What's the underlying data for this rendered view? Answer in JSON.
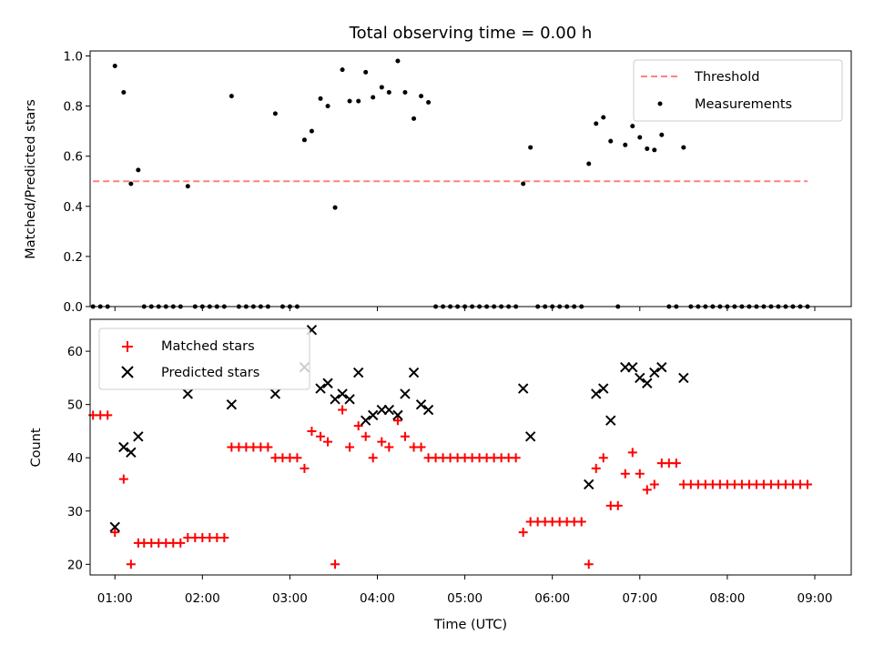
{
  "figure": {
    "title": "Total observing time = 0.00 h",
    "xlabel": "Time (UTC)"
  },
  "chart_data": [
    {
      "type": "scatter",
      "panel": "top",
      "title": "Total observing time = 0.00 h",
      "xlabel": "",
      "ylabel": "Matched/Predicted stars",
      "x_axis": "time of day (UTC, HH:MM)",
      "xlim": [
        "00:43",
        "09:25"
      ],
      "ylim": [
        0,
        1.02
      ],
      "y_ticks": [
        0.0,
        0.2,
        0.4,
        0.6,
        0.8,
        1.0
      ],
      "y_tick_labels": [
        "0.0",
        "0.2",
        "0.4",
        "0.6",
        "0.8",
        "1.0"
      ],
      "grid": false,
      "legend": {
        "placement": "top-right",
        "entries": [
          "Threshold",
          "Measurements"
        ]
      },
      "threshold": {
        "name": "Threshold",
        "value": 0.5,
        "x_start": "00:45",
        "x_end": "08:55",
        "color": "#ff8080",
        "style": "dashed"
      },
      "series": [
        {
          "name": "Measurements",
          "color": "#000000",
          "points": [
            [
              "00:45",
              0.0
            ],
            [
              "00:50",
              0.0
            ],
            [
              "00:55",
              0.0
            ],
            [
              "01:00",
              0.96
            ],
            [
              "01:06",
              0.855
            ],
            [
              "01:11",
              0.49
            ],
            [
              "01:16",
              0.545
            ],
            [
              "01:20",
              0.0
            ],
            [
              "01:25",
              0.0
            ],
            [
              "01:30",
              0.0
            ],
            [
              "01:35",
              0.0
            ],
            [
              "01:40",
              0.0
            ],
            [
              "01:45",
              0.0
            ],
            [
              "01:50",
              0.48
            ],
            [
              "01:55",
              0.0
            ],
            [
              "02:00",
              0.0
            ],
            [
              "02:05",
              0.0
            ],
            [
              "02:10",
              0.0
            ],
            [
              "02:15",
              0.0
            ],
            [
              "02:20",
              0.84
            ],
            [
              "02:25",
              0.0
            ],
            [
              "02:30",
              0.0
            ],
            [
              "02:35",
              0.0
            ],
            [
              "02:40",
              0.0
            ],
            [
              "02:45",
              0.0
            ],
            [
              "02:50",
              0.77
            ],
            [
              "02:55",
              0.0
            ],
            [
              "03:00",
              0.0
            ],
            [
              "03:05",
              0.0
            ],
            [
              "03:10",
              0.665
            ],
            [
              "03:15",
              0.7
            ],
            [
              "03:21",
              0.83
            ],
            [
              "03:26",
              0.8
            ],
            [
              "03:31",
              0.395
            ],
            [
              "03:36",
              0.945
            ],
            [
              "03:41",
              0.82
            ],
            [
              "03:47",
              0.82
            ],
            [
              "03:52",
              0.935
            ],
            [
              "03:57",
              0.835
            ],
            [
              "04:03",
              0.875
            ],
            [
              "04:08",
              0.855
            ],
            [
              "04:14",
              0.98
            ],
            [
              "04:19",
              0.855
            ],
            [
              "04:25",
              0.75
            ],
            [
              "04:30",
              0.84
            ],
            [
              "04:35",
              0.815
            ],
            [
              "04:40",
              0.0
            ],
            [
              "04:45",
              0.0
            ],
            [
              "04:50",
              0.0
            ],
            [
              "04:55",
              0.0
            ],
            [
              "05:00",
              0.0
            ],
            [
              "05:05",
              0.0
            ],
            [
              "05:10",
              0.0
            ],
            [
              "05:15",
              0.0
            ],
            [
              "05:20",
              0.0
            ],
            [
              "05:25",
              0.0
            ],
            [
              "05:30",
              0.0
            ],
            [
              "05:35",
              0.0
            ],
            [
              "05:40",
              0.49
            ],
            [
              "05:45",
              0.635
            ],
            [
              "05:50",
              0.0
            ],
            [
              "05:55",
              0.0
            ],
            [
              "06:00",
              0.0
            ],
            [
              "06:05",
              0.0
            ],
            [
              "06:10",
              0.0
            ],
            [
              "06:15",
              0.0
            ],
            [
              "06:20",
              0.0
            ],
            [
              "06:25",
              0.57
            ],
            [
              "06:30",
              0.73
            ],
            [
              "06:35",
              0.755
            ],
            [
              "06:40",
              0.66
            ],
            [
              "06:45",
              0.0
            ],
            [
              "06:50",
              0.645
            ],
            [
              "06:55",
              0.72
            ],
            [
              "07:00",
              0.675
            ],
            [
              "07:05",
              0.63
            ],
            [
              "07:10",
              0.625
            ],
            [
              "07:15",
              0.685
            ],
            [
              "07:20",
              0.0
            ],
            [
              "07:25",
              0.0
            ],
            [
              "07:30",
              0.635
            ],
            [
              "07:35",
              0.0
            ],
            [
              "07:40",
              0.0
            ],
            [
              "07:45",
              0.0
            ],
            [
              "07:50",
              0.0
            ],
            [
              "07:55",
              0.0
            ],
            [
              "08:00",
              0.0
            ],
            [
              "08:05",
              0.0
            ],
            [
              "08:10",
              0.0
            ],
            [
              "08:15",
              0.0
            ],
            [
              "08:20",
              0.0
            ],
            [
              "08:25",
              0.0
            ],
            [
              "08:30",
              0.0
            ],
            [
              "08:35",
              0.0
            ],
            [
              "08:40",
              0.0
            ],
            [
              "08:45",
              0.0
            ],
            [
              "08:50",
              0.0
            ],
            [
              "08:55",
              0.0
            ]
          ]
        }
      ]
    },
    {
      "type": "scatter",
      "panel": "bottom",
      "xlabel": "Time (UTC)",
      "ylabel": "Count",
      "x_axis": "time of day (UTC, HH:MM)",
      "xlim": [
        "00:43",
        "09:25"
      ],
      "x_ticks": [
        "01:00",
        "02:00",
        "03:00",
        "04:00",
        "05:00",
        "06:00",
        "07:00",
        "08:00",
        "09:00"
      ],
      "ylim": [
        18,
        66
      ],
      "y_ticks": [
        20,
        30,
        40,
        50,
        60
      ],
      "y_tick_labels": [
        "20",
        "30",
        "40",
        "50",
        "60"
      ],
      "grid": false,
      "legend": {
        "placement": "top-left",
        "entries": [
          "Matched stars",
          "Predicted stars"
        ]
      },
      "series": [
        {
          "name": "Matched stars",
          "marker": "plus",
          "color": "#ff0000",
          "points": [
            [
              "00:45",
              48
            ],
            [
              "00:50",
              48
            ],
            [
              "00:55",
              48
            ],
            [
              "01:00",
              26
            ],
            [
              "01:06",
              36
            ],
            [
              "01:11",
              20
            ],
            [
              "01:16",
              24
            ],
            [
              "01:20",
              24
            ],
            [
              "01:25",
              24
            ],
            [
              "01:30",
              24
            ],
            [
              "01:35",
              24
            ],
            [
              "01:40",
              24
            ],
            [
              "01:45",
              24
            ],
            [
              "01:50",
              25
            ],
            [
              "01:55",
              25
            ],
            [
              "02:00",
              25
            ],
            [
              "02:05",
              25
            ],
            [
              "02:10",
              25
            ],
            [
              "02:15",
              25
            ],
            [
              "02:20",
              42
            ],
            [
              "02:25",
              42
            ],
            [
              "02:30",
              42
            ],
            [
              "02:35",
              42
            ],
            [
              "02:40",
              42
            ],
            [
              "02:45",
              42
            ],
            [
              "02:50",
              40
            ],
            [
              "02:55",
              40
            ],
            [
              "03:00",
              40
            ],
            [
              "03:05",
              40
            ],
            [
              "03:10",
              38
            ],
            [
              "03:15",
              45
            ],
            [
              "03:21",
              44
            ],
            [
              "03:26",
              43
            ],
            [
              "03:31",
              20
            ],
            [
              "03:36",
              49
            ],
            [
              "03:41",
              42
            ],
            [
              "03:47",
              46
            ],
            [
              "03:52",
              44
            ],
            [
              "03:57",
              40
            ],
            [
              "04:03",
              43
            ],
            [
              "04:08",
              42
            ],
            [
              "04:14",
              47
            ],
            [
              "04:19",
              44
            ],
            [
              "04:25",
              42
            ],
            [
              "04:30",
              42
            ],
            [
              "04:35",
              40
            ],
            [
              "04:40",
              40
            ],
            [
              "04:45",
              40
            ],
            [
              "04:50",
              40
            ],
            [
              "04:55",
              40
            ],
            [
              "05:00",
              40
            ],
            [
              "05:05",
              40
            ],
            [
              "05:10",
              40
            ],
            [
              "05:15",
              40
            ],
            [
              "05:20",
              40
            ],
            [
              "05:25",
              40
            ],
            [
              "05:30",
              40
            ],
            [
              "05:35",
              40
            ],
            [
              "05:40",
              26
            ],
            [
              "05:45",
              28
            ],
            [
              "05:50",
              28
            ],
            [
              "05:55",
              28
            ],
            [
              "06:00",
              28
            ],
            [
              "06:05",
              28
            ],
            [
              "06:10",
              28
            ],
            [
              "06:15",
              28
            ],
            [
              "06:20",
              28
            ],
            [
              "06:25",
              20
            ],
            [
              "06:30",
              38
            ],
            [
              "06:35",
              40
            ],
            [
              "06:40",
              31
            ],
            [
              "06:45",
              31
            ],
            [
              "06:50",
              37
            ],
            [
              "06:55",
              41
            ],
            [
              "07:00",
              37
            ],
            [
              "07:05",
              34
            ],
            [
              "07:10",
              35
            ],
            [
              "07:15",
              39
            ],
            [
              "07:20",
              39
            ],
            [
              "07:25",
              39
            ],
            [
              "07:30",
              35
            ],
            [
              "07:35",
              35
            ],
            [
              "07:40",
              35
            ],
            [
              "07:45",
              35
            ],
            [
              "07:50",
              35
            ],
            [
              "07:55",
              35
            ],
            [
              "08:00",
              35
            ],
            [
              "08:05",
              35
            ],
            [
              "08:10",
              35
            ],
            [
              "08:15",
              35
            ],
            [
              "08:20",
              35
            ],
            [
              "08:25",
              35
            ],
            [
              "08:30",
              35
            ],
            [
              "08:35",
              35
            ],
            [
              "08:40",
              35
            ],
            [
              "08:45",
              35
            ],
            [
              "08:50",
              35
            ],
            [
              "08:55",
              35
            ]
          ]
        },
        {
          "name": "Predicted stars",
          "marker": "x",
          "color": "#000000",
          "points": [
            [
              "01:00",
              27
            ],
            [
              "01:06",
              42
            ],
            [
              "01:11",
              41
            ],
            [
              "01:16",
              44
            ],
            [
              "01:50",
              52
            ],
            [
              "02:20",
              50
            ],
            [
              "02:50",
              52
            ],
            [
              "03:10",
              57
            ],
            [
              "03:15",
              64
            ],
            [
              "03:21",
              53
            ],
            [
              "03:26",
              54
            ],
            [
              "03:31",
              51
            ],
            [
              "03:36",
              52
            ],
            [
              "03:41",
              51
            ],
            [
              "03:47",
              56
            ],
            [
              "03:52",
              47
            ],
            [
              "03:57",
              48
            ],
            [
              "04:03",
              49
            ],
            [
              "04:08",
              49
            ],
            [
              "04:14",
              48
            ],
            [
              "04:19",
              52
            ],
            [
              "04:25",
              56
            ],
            [
              "04:30",
              50
            ],
            [
              "04:35",
              49
            ],
            [
              "05:40",
              53
            ],
            [
              "05:45",
              44
            ],
            [
              "06:25",
              35
            ],
            [
              "06:30",
              52
            ],
            [
              "06:35",
              53
            ],
            [
              "06:40",
              47
            ],
            [
              "06:50",
              57
            ],
            [
              "06:55",
              57
            ],
            [
              "07:00",
              55
            ],
            [
              "07:05",
              54
            ],
            [
              "07:10",
              56
            ],
            [
              "07:15",
              57
            ],
            [
              "07:30",
              55
            ]
          ]
        }
      ]
    }
  ]
}
